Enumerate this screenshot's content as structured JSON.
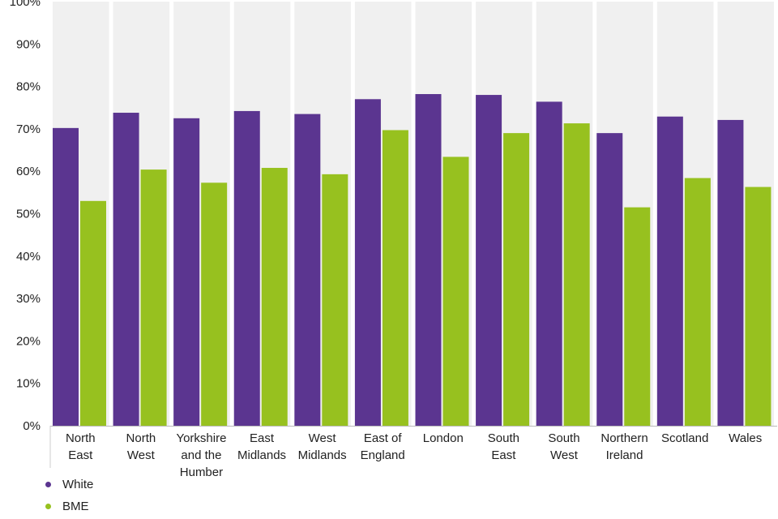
{
  "chart_data": {
    "type": "bar",
    "title": "",
    "xlabel": "",
    "ylabel": "",
    "ylim": [
      0,
      100
    ],
    "yticks": [
      0,
      10,
      20,
      30,
      40,
      50,
      60,
      70,
      80,
      90,
      100
    ],
    "ytick_suffix": "%",
    "categories": [
      [
        "North",
        "East"
      ],
      [
        "North",
        "West"
      ],
      [
        "Yorkshire",
        "and the",
        "Humber"
      ],
      [
        "East",
        "Midlands"
      ],
      [
        "West",
        "Midlands"
      ],
      [
        "East of",
        "England"
      ],
      [
        "London"
      ],
      [
        "South",
        "East"
      ],
      [
        "South",
        "West"
      ],
      [
        "Northern",
        "Ireland"
      ],
      [
        "Scotland"
      ],
      [
        "Wales"
      ]
    ],
    "series": [
      {
        "name": "White",
        "color": "#5b3590",
        "values": [
          70.2,
          73.8,
          72.5,
          74.2,
          73.5,
          77.0,
          78.2,
          78.0,
          76.4,
          69.0,
          72.9,
          72.1
        ]
      },
      {
        "name": "BME",
        "color": "#97c11f",
        "values": [
          53.0,
          60.4,
          57.3,
          60.8,
          59.3,
          69.7,
          63.4,
          69.0,
          71.3,
          51.5,
          58.4,
          56.3
        ]
      }
    ],
    "background_band_color": "#f0f0f0",
    "legend_position": "bottom-left"
  }
}
